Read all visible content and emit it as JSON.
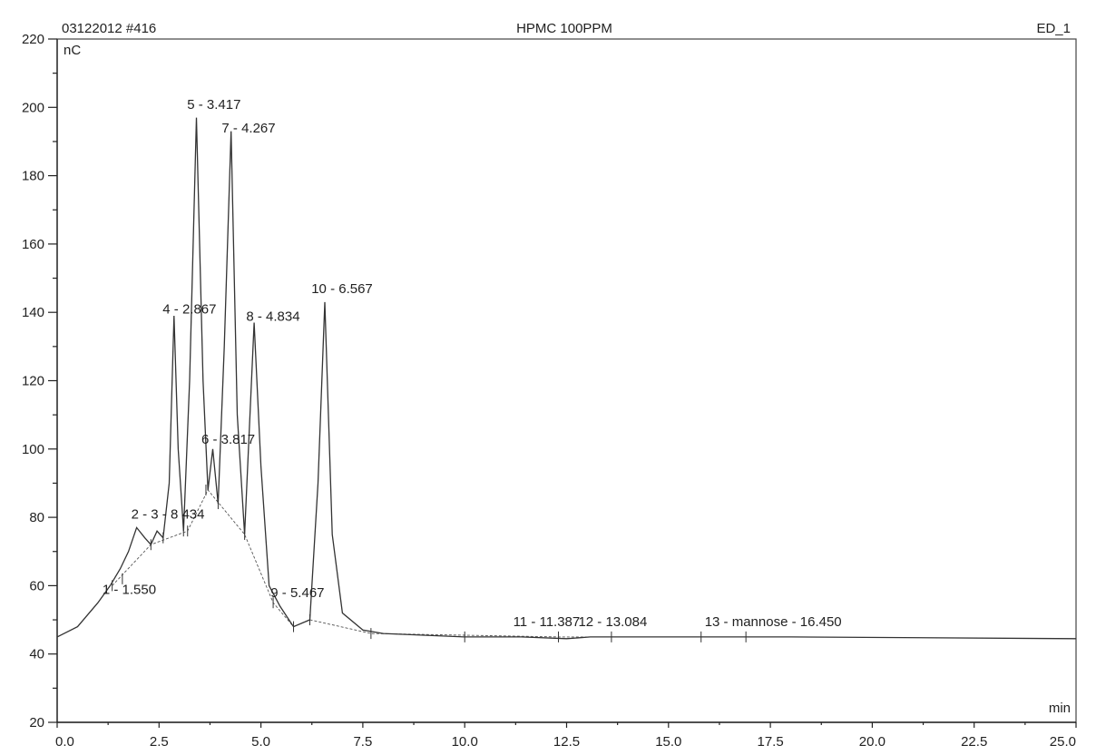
{
  "header": {
    "left": "03122012 #416",
    "center": "HPMC 100PPM",
    "right": "ED_1"
  },
  "chart_data": {
    "type": "line",
    "title": "HPMC 100PPM",
    "xlabel": "min",
    "ylabel": "nC",
    "xlim": [
      0,
      25
    ],
    "ylim": [
      20,
      220
    ],
    "x_ticks": [
      "0.0",
      "2.5",
      "5.0",
      "7.5",
      "10.0",
      "12.5",
      "15.0",
      "17.5",
      "20.0",
      "22.5",
      "25.0"
    ],
    "x_tick_values": [
      0,
      2.5,
      5,
      7.5,
      10,
      12.5,
      15,
      17.5,
      20,
      22.5,
      25
    ],
    "y_ticks": [
      "20",
      "40",
      "60",
      "80",
      "100",
      "120",
      "140",
      "160",
      "180",
      "200",
      "220"
    ],
    "y_tick_values": [
      20,
      40,
      60,
      80,
      100,
      120,
      140,
      160,
      180,
      200,
      220
    ],
    "grid": false,
    "series": [
      {
        "x": [
          0,
          0.5,
          1.0,
          1.3,
          1.55,
          1.75,
          1.95,
          2.15,
          2.3,
          2.45,
          2.6,
          2.75,
          2.867,
          2.97,
          3.1,
          3.25,
          3.417,
          3.58,
          3.7,
          3.817,
          3.95,
          4.1,
          4.267,
          4.42,
          4.6,
          4.834,
          5.0,
          5.2,
          5.467,
          5.8,
          6.2,
          6.4,
          6.567,
          6.75,
          7.0,
          7.5,
          8.0,
          10.0,
          11.387,
          12.5,
          13.084,
          14.0,
          16.45,
          18.0,
          25.0
        ],
        "y": [
          45,
          48,
          55,
          60,
          65,
          70,
          77,
          74,
          72,
          76,
          74,
          90,
          139,
          100,
          76,
          120,
          197,
          120,
          88,
          100,
          84,
          130,
          193,
          110,
          75,
          137,
          95,
          60,
          54,
          48,
          50,
          90,
          143,
          75,
          52,
          47,
          46,
          45,
          45,
          44.5,
          45,
          45,
          45,
          45,
          44.5
        ]
      }
    ],
    "annotations": [
      "1 - 1.550",
      "2 - 3 - 8 434",
      "4 - 2.867",
      "5 - 3.417",
      "6 - 3.817",
      "7 - 4.267",
      "8 - 4.834",
      "9 - 5.467",
      "10 - 6.567",
      "11 - 11.387",
      "12 - 13.084",
      "13 - mannose - 16.450"
    ]
  }
}
